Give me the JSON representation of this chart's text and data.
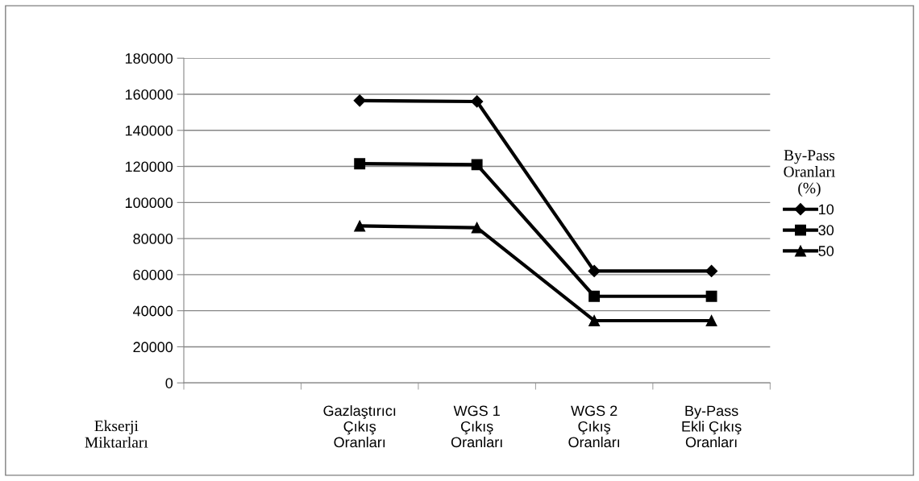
{
  "chart_data": {
    "type": "line",
    "ylabel": "Ekserji\nMiktarları",
    "legend_title": "By-Pass\nOranları\n(%)",
    "categories": [
      null,
      "Gazlaştırıcı\nÇıkış\nOranları",
      "WGS 1\nÇıkış\nOranları",
      "WGS 2\nÇıkış\nOranları",
      "By-Pass\nEkli Çıkış\nOranları"
    ],
    "series": [
      {
        "name": "10",
        "color": "#000000",
        "marker": "diamond",
        "values": [
          null,
          156500,
          156000,
          62000,
          62000
        ]
      },
      {
        "name": "30",
        "color": "#000000",
        "marker": "square",
        "values": [
          null,
          121500,
          121000,
          48000,
          48000
        ]
      },
      {
        "name": "50",
        "color": "#000000",
        "marker": "triangle",
        "values": [
          null,
          87000,
          86000,
          34500,
          34500
        ]
      }
    ],
    "ylim": [
      0,
      180000
    ],
    "yticks": [
      0,
      20000,
      40000,
      60000,
      80000,
      100000,
      120000,
      140000,
      160000,
      180000
    ],
    "grid": "y",
    "legend": "right",
    "line_style": "solid"
  }
}
